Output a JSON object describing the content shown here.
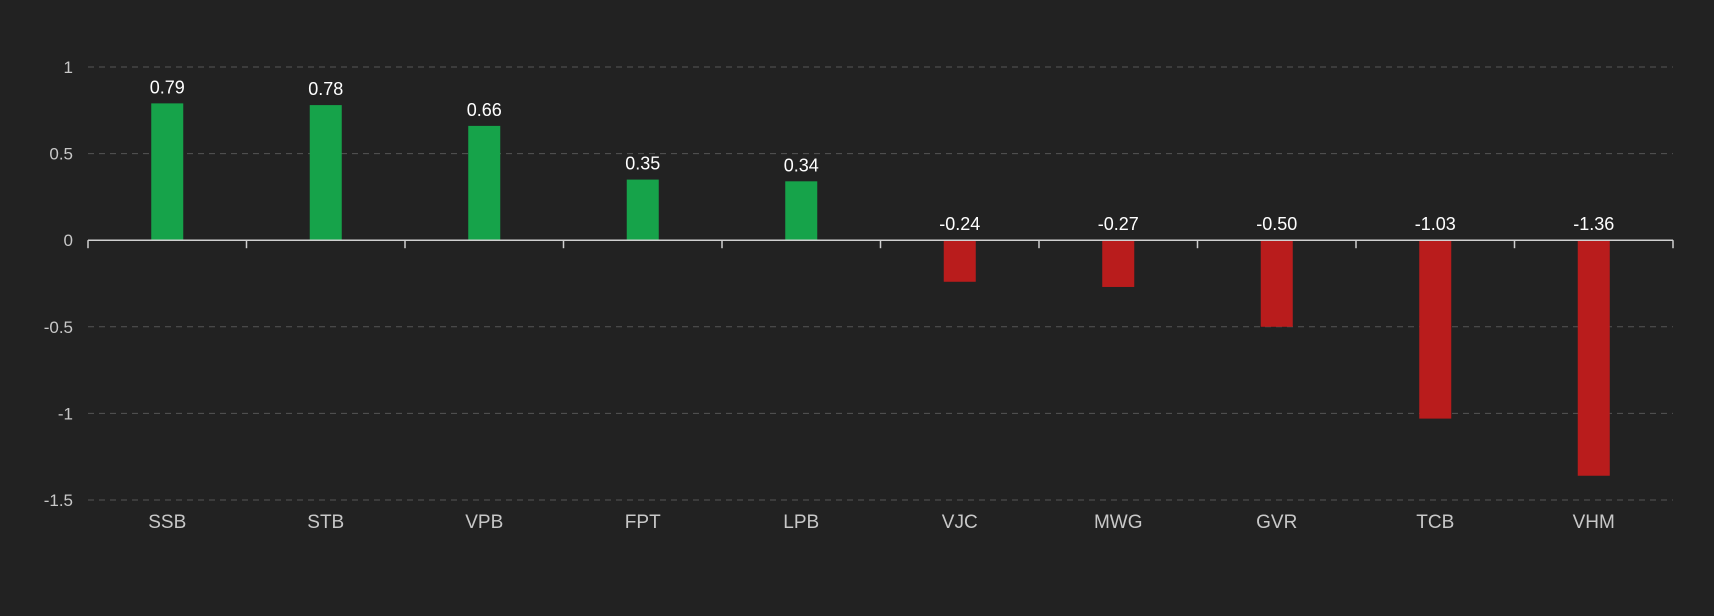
{
  "chart_data": {
    "type": "bar",
    "categories": [
      "SSB",
      "STB",
      "VPB",
      "FPT",
      "LPB",
      "VJC",
      "MWG",
      "GVR",
      "TCB",
      "VHM"
    ],
    "values": [
      0.79,
      0.78,
      0.66,
      0.35,
      0.34,
      -0.24,
      -0.27,
      -0.5,
      -1.03,
      -1.36
    ],
    "data_labels": [
      "0.79",
      "0.78",
      "0.66",
      "0.35",
      "0.34",
      "-0.24",
      "-0.27",
      "-0.50",
      "-1.03",
      "-1.36"
    ],
    "y_ticks": [
      1,
      0.5,
      0,
      -0.5,
      -1,
      -1.5
    ],
    "y_tick_labels": [
      "1",
      "0.5",
      "0",
      "-0.5",
      "-1",
      "-1.5"
    ],
    "ylim": [
      -1.5,
      1
    ],
    "grid": "horizontal-dashed",
    "colors": {
      "positive": "#16a34a",
      "negative": "#b91c1c",
      "background": "#222222",
      "grid": "#555555",
      "axis": "#d0d0d0",
      "text": "#c8c8c8",
      "label": "#ffffff"
    }
  }
}
